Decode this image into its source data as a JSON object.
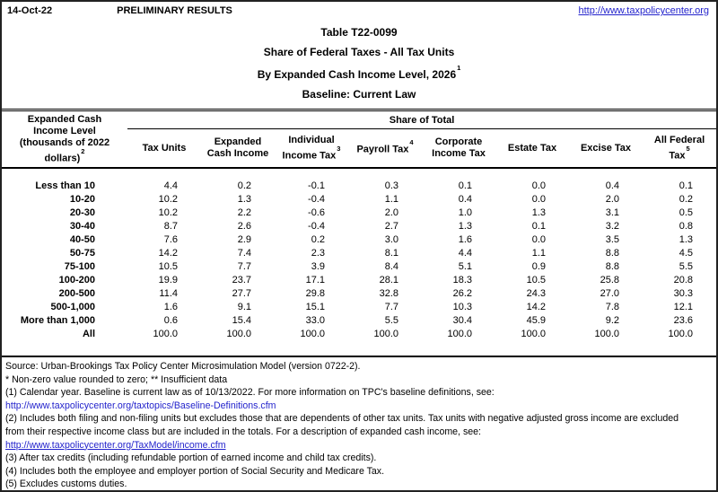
{
  "colors": {
    "link": "#2323cc",
    "text": "#000000",
    "border": "#000000"
  },
  "topbar": {
    "date": "14-Oct-22",
    "preliminary": "PRELIMINARY RESULTS",
    "site_url": "http://www.taxpolicycenter.org"
  },
  "title": {
    "line1": "Table T22-0099",
    "line2": "Share of Federal Taxes - All Tax Units",
    "line3": "By Expanded Cash Income Level, 2026",
    "line3_sup": "1",
    "line4": "Baseline: Current Law"
  },
  "table": {
    "row_header": {
      "text": "Expanded Cash Income Level (thousands of 2022 dollars)",
      "sup": "2"
    },
    "span_header": "Share of Total",
    "columns": [
      {
        "label": "Tax Units",
        "sup": ""
      },
      {
        "label": "Expanded Cash Income",
        "sup": ""
      },
      {
        "label": "Individual Income Tax",
        "sup": "3"
      },
      {
        "label": "Payroll Tax",
        "sup": "4"
      },
      {
        "label": "Corporate Income Tax",
        "sup": ""
      },
      {
        "label": "Estate Tax",
        "sup": ""
      },
      {
        "label": "Excise Tax",
        "sup": ""
      },
      {
        "label": "All Federal Tax",
        "sup": "5"
      }
    ],
    "rows": [
      {
        "label": "Less than 10",
        "values": [
          "4.4",
          "0.2",
          "-0.1",
          "0.3",
          "0.1",
          "0.0",
          "0.4",
          "0.1"
        ]
      },
      {
        "label": "10-20",
        "values": [
          "10.2",
          "1.3",
          "-0.4",
          "1.1",
          "0.4",
          "0.0",
          "2.0",
          "0.2"
        ]
      },
      {
        "label": "20-30",
        "values": [
          "10.2",
          "2.2",
          "-0.6",
          "2.0",
          "1.0",
          "1.3",
          "3.1",
          "0.5"
        ]
      },
      {
        "label": "30-40",
        "values": [
          "8.7",
          "2.6",
          "-0.4",
          "2.7",
          "1.3",
          "0.1",
          "3.2",
          "0.8"
        ]
      },
      {
        "label": "40-50",
        "values": [
          "7.6",
          "2.9",
          "0.2",
          "3.0",
          "1.6",
          "0.0",
          "3.5",
          "1.3"
        ]
      },
      {
        "label": "50-75",
        "values": [
          "14.2",
          "7.4",
          "2.3",
          "8.1",
          "4.4",
          "1.1",
          "8.8",
          "4.5"
        ]
      },
      {
        "label": "75-100",
        "values": [
          "10.5",
          "7.7",
          "3.9",
          "8.4",
          "5.1",
          "0.9",
          "8.8",
          "5.5"
        ]
      },
      {
        "label": "100-200",
        "values": [
          "19.9",
          "23.7",
          "17.1",
          "28.1",
          "18.3",
          "10.5",
          "25.8",
          "20.8"
        ]
      },
      {
        "label": "200-500",
        "values": [
          "11.4",
          "27.7",
          "29.8",
          "32.8",
          "26.2",
          "24.3",
          "27.0",
          "30.3"
        ]
      },
      {
        "label": "500-1,000",
        "values": [
          "1.6",
          "9.1",
          "15.1",
          "7.7",
          "10.3",
          "14.2",
          "7.8",
          "12.1"
        ]
      },
      {
        "label": "More than 1,000",
        "values": [
          "0.6",
          "15.4",
          "33.0",
          "5.5",
          "30.4",
          "45.9",
          "9.2",
          "23.6"
        ]
      },
      {
        "label": "All",
        "values": [
          "100.0",
          "100.0",
          "100.0",
          "100.0",
          "100.0",
          "100.0",
          "100.0",
          "100.0"
        ]
      }
    ]
  },
  "footnotes": {
    "lines": [
      {
        "text": "Source: Urban-Brookings Tax Policy Center Microsimulation Model (version 0722-2).",
        "kind": "text"
      },
      {
        "text": "* Non-zero value rounded to zero; ** Insufficient data",
        "kind": "text"
      },
      {
        "text": "(1) Calendar year. Baseline is current law as of 10/13/2022. For more information on TPC's baseline definitions, see:",
        "kind": "text"
      },
      {
        "text": "http://www.taxpolicycenter.org/taxtopics/Baseline-Definitions.cfm",
        "kind": "link",
        "underline": false
      },
      {
        "text": "(2) Includes both filing and non-filing units but excludes those that are dependents of other tax units. Tax units with negative adjusted gross income are excluded",
        "kind": "text"
      },
      {
        "text": "from their respective income class but are included in the totals. For a description of expanded cash income, see:",
        "kind": "text"
      },
      {
        "text": "http://www.taxpolicycenter.org/TaxModel/income.cfm",
        "kind": "link",
        "underline": true
      },
      {
        "text": "(3) After tax credits (including refundable portion of earned income and child tax credits).",
        "kind": "text"
      },
      {
        "text": "(4) Includes both the employee and employer portion of Social Security and Medicare Tax.",
        "kind": "text"
      },
      {
        "text": "(5) Excludes customs duties.",
        "kind": "text"
      }
    ]
  }
}
